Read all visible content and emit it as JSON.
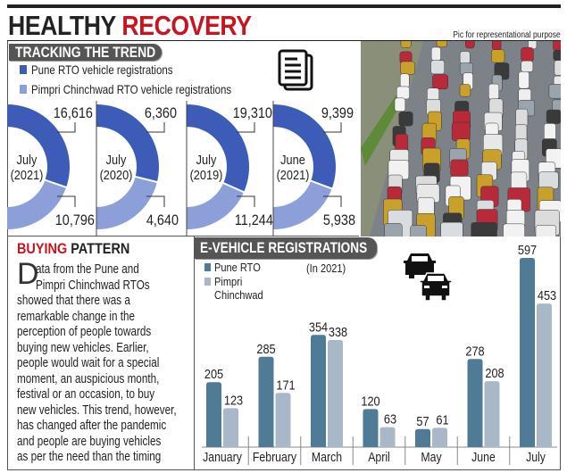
{
  "header": {
    "title_part1": "HEALTHY",
    "title_part2": "RECOVERY",
    "photo_note": "Pic for representational purpose",
    "accent_color": "#c8141e"
  },
  "tracking": {
    "tag": "TRACKING THE TREND",
    "legend": [
      {
        "label": "Pune RTO vehicle registrations",
        "color": "#3d5cb8"
      },
      {
        "label": "Pimpri Chinchwad RTO vehicle registrations",
        "color": "#8d9fd9"
      }
    ],
    "icon": "document-icon",
    "donuts": [
      {
        "month": "July",
        "year": "(2021)",
        "pune": "16,616",
        "pimpri": "10,796"
      },
      {
        "month": "July",
        "year": "(2020)",
        "pune": "6,360",
        "pimpri": "4,640"
      },
      {
        "month": "July",
        "year": "(2019)",
        "pune": "19,310",
        "pimpri": "11,244"
      },
      {
        "month": "June",
        "year": "(2021)",
        "pune": "9,399",
        "pimpri": "5,938"
      }
    ]
  },
  "photo": {
    "icon": "traffic-photo"
  },
  "buying": {
    "title_part1": "BUYING",
    "title_part2": "PATTERN",
    "dropcap": "D",
    "lines": [
      "ata from the Pune and",
      "Pimpri Chinchwad RTOs",
      "showed that there was a",
      "remarkable change in the",
      "perception of people towards",
      "buying new vehicles. Earlier,",
      "people would wait for a special",
      "moment, an auspicious month,",
      "festival or an occasion, to buy",
      "new vehicles. This trend, however,",
      "has changed after the pandemic",
      "and people are buying vehicles",
      "as per the need than the timing"
    ]
  },
  "ev": {
    "tag": "E-VEHICLE REGISTRATIONS",
    "legend_pune": "Pune RTO",
    "legend_pimpri_1": "Pimpri",
    "legend_pimpri_2": "Chinchwad",
    "note": "(In 2021)",
    "icon": "cars-icon"
  },
  "chart_data": [
    {
      "type": "pie",
      "title": "July (2021)",
      "series": [
        {
          "name": "Pune RTO vehicle registrations",
          "value": 16616,
          "color": "#3d5cb8"
        },
        {
          "name": "Pimpri Chinchwad RTO vehicle registrations",
          "value": 10796,
          "color": "#8d9fd9"
        }
      ]
    },
    {
      "type": "pie",
      "title": "July (2020)",
      "series": [
        {
          "name": "Pune RTO vehicle registrations",
          "value": 6360,
          "color": "#3d5cb8"
        },
        {
          "name": "Pimpri Chinchwad RTO vehicle registrations",
          "value": 4640,
          "color": "#8d9fd9"
        }
      ]
    },
    {
      "type": "pie",
      "title": "July (2019)",
      "series": [
        {
          "name": "Pune RTO vehicle registrations",
          "value": 19310,
          "color": "#3d5cb8"
        },
        {
          "name": "Pimpri Chinchwad RTO vehicle registrations",
          "value": 11244,
          "color": "#8d9fd9"
        }
      ]
    },
    {
      "type": "pie",
      "title": "June (2021)",
      "series": [
        {
          "name": "Pune RTO vehicle registrations",
          "value": 9399,
          "color": "#3d5cb8"
        },
        {
          "name": "Pimpri Chinchwad RTO vehicle registrations",
          "value": 5938,
          "color": "#8d9fd9"
        }
      ]
    },
    {
      "type": "bar",
      "title": "E-VEHICLE REGISTRATIONS",
      "subtitle": "(In 2021)",
      "categories": [
        "January",
        "February",
        "March",
        "April",
        "May",
        "June",
        "July"
      ],
      "series": [
        {
          "name": "Pune RTO",
          "values": [
            205,
            285,
            354,
            120,
            57,
            278,
            597
          ],
          "color": "#4f7b97"
        },
        {
          "name": "Pimpri Chinchwad",
          "values": [
            123,
            171,
            338,
            63,
            61,
            208,
            453
          ],
          "color": "#a8b8c8"
        }
      ],
      "ylim": [
        0,
        597
      ],
      "grid": false,
      "legend": "top-left",
      "data_labels": true
    }
  ]
}
